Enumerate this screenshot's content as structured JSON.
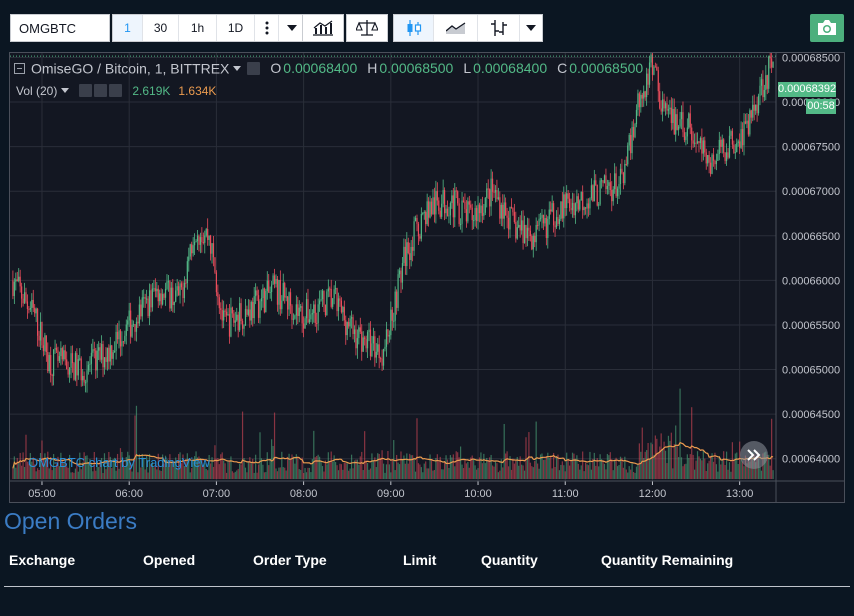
{
  "toolbar": {
    "symbol_value": "OMGBTC",
    "intervals": [
      "1",
      "30",
      "1h",
      "1D"
    ],
    "active_interval": "1"
  },
  "legend": {
    "title": "OmiseGO / Bitcoin, 1, BITTREX",
    "open_label": "O",
    "open": "0.00068400",
    "high_label": "H",
    "high": "0.00068500",
    "low_label": "L",
    "low": "0.00068400",
    "close_label": "C",
    "close": "0.00068500"
  },
  "volume_legend": {
    "label": "Vol (20)",
    "value_up": "2.619K",
    "value_ma": "1.634K"
  },
  "price_axis_labels": [
    "0.00068500",
    "0.00068000",
    "0.00067500",
    "0.00067000",
    "0.00066500",
    "0.00066000",
    "0.00065500",
    "0.00065000",
    "0.00064500",
    "0.00064000"
  ],
  "time_axis_labels": [
    "05:00",
    "06:00",
    "07:00",
    "08:00",
    "09:00",
    "10:00",
    "11:00",
    "12:00",
    "13:00"
  ],
  "last_price_tag": "0.00068392",
  "countdown_tag": "00:58",
  "watermark": "OMGBTC chart by TradingView",
  "colors": {
    "up": "#53b987",
    "down": "#eb4d5c",
    "volume_ma": "#eb9b4f",
    "background": "#131722",
    "page": "#0b1622",
    "accent": "#2196f3",
    "orders_title": "#3b7cc4"
  },
  "icons": [
    "indicators-icon",
    "compare-icon",
    "candles-icon",
    "area-icon",
    "bars-icon",
    "chevron-down-icon",
    "camera-icon",
    "scroll-right-icon",
    "eye-icon",
    "gear-icon",
    "close-icon"
  ],
  "chart_data": {
    "type": "candlestick",
    "symbol": "OMGBTC",
    "exchange": "BITTREX",
    "interval": "1",
    "ylim": [
      0.0006375,
      0.0006855
    ],
    "x_start": "04:38",
    "x_end": "13:25",
    "grid": true,
    "price_path": [
      [
        "04:40",
        0.00066
      ],
      [
        "04:55",
        0.000656
      ],
      [
        "05:05",
        0.000651
      ],
      [
        "05:30",
        0.00065
      ],
      [
        "05:45",
        0.000652
      ],
      [
        "06:00",
        0.000655
      ],
      [
        "06:20",
        0.000659
      ],
      [
        "06:35",
        0.000658
      ],
      [
        "06:45",
        0.000666
      ],
      [
        "06:55",
        0.000665
      ],
      [
        "07:05",
        0.000655
      ],
      [
        "07:25",
        0.000657
      ],
      [
        "07:40",
        0.000659
      ],
      [
        "08:00",
        0.000656
      ],
      [
        "08:20",
        0.000658
      ],
      [
        "08:35",
        0.000654
      ],
      [
        "08:55",
        0.000652
      ],
      [
        "09:10",
        0.000663
      ],
      [
        "09:25",
        0.000668
      ],
      [
        "09:40",
        0.000669
      ],
      [
        "09:55",
        0.000667
      ],
      [
        "10:10",
        0.00067
      ],
      [
        "10:25",
        0.000666
      ],
      [
        "10:40",
        0.000665
      ],
      [
        "10:55",
        0.000668
      ],
      [
        "11:10",
        0.000669
      ],
      [
        "11:25",
        0.00067
      ],
      [
        "11:40",
        0.000671
      ],
      [
        "11:50",
        0.00068
      ],
      [
        "12:00",
        0.000684
      ],
      [
        "12:10",
        0.000678
      ],
      [
        "12:25",
        0.000677
      ],
      [
        "12:40",
        0.000673
      ],
      [
        "12:50",
        0.000675
      ],
      [
        "13:05",
        0.000677
      ],
      [
        "13:15",
        0.000682
      ],
      [
        "13:22",
        0.000684
      ]
    ]
  },
  "open_orders": {
    "title": "Open Orders",
    "columns": [
      "Exchange",
      "Opened",
      "Order Type",
      "Limit",
      "Quantity",
      "Quantity Remaining"
    ]
  }
}
